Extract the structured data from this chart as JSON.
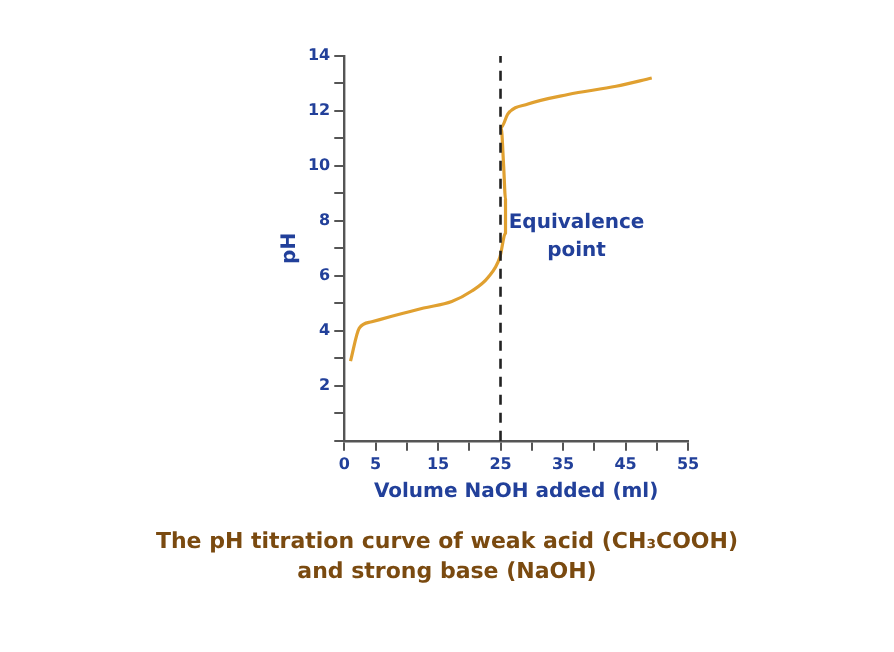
{
  "chart_data": {
    "type": "line",
    "title": "The pH titration curve of weak acid (CH₃COOH) and strong base (NaOH)",
    "xlabel": "Volume NaOH added (ml)",
    "ylabel": "pH",
    "series": [
      {
        "color": "#e0a030",
        "x": [
          1,
          2.4,
          4.4,
          7.6,
          12.7,
          17.2,
          20.4,
          23,
          24.9,
          25.8,
          25.8,
          25.5,
          25.1,
          26.2,
          29.4,
          35.8,
          43.5,
          49.2
        ],
        "values": [
          2.9,
          4.1,
          4.33,
          4.53,
          4.83,
          5.07,
          5.45,
          5.94,
          6.68,
          7.55,
          8.8,
          10.0,
          11.4,
          11.9,
          12.25,
          12.6,
          12.9,
          13.2
        ]
      }
    ],
    "xlim": [
      0,
      55
    ],
    "xticks": [
      0,
      5,
      {
        "value": 10,
        "label": null
      },
      15,
      {
        "value": 20,
        "label": null
      },
      25,
      {
        "value": 30,
        "label": null
      },
      35,
      {
        "value": 40,
        "label": null
      },
      45,
      {
        "value": 50,
        "label": null
      },
      55
    ],
    "ylim": [
      0,
      14
    ],
    "yticks": [
      {
        "value": 0,
        "label": null
      },
      {
        "value": 1,
        "label": null
      },
      2,
      {
        "value": 3,
        "label": null
      },
      4,
      {
        "value": 5,
        "label": null
      },
      6,
      {
        "value": 7,
        "label": null
      },
      8,
      {
        "value": 9,
        "label": null
      },
      10,
      {
        "value": 11,
        "label": null
      },
      12,
      {
        "value": 13,
        "label": null
      },
      14
    ],
    "ref_lines": [
      {
        "axis": "x",
        "value": 25,
        "color": "#222222",
        "line_style": "dashed"
      }
    ],
    "annotations": [
      {
        "text": "Equivalence point",
        "x": 25,
        "y": 7.3
      }
    ],
    "grid": false,
    "legend": false,
    "marker": "none",
    "line_style": "solid"
  }
}
